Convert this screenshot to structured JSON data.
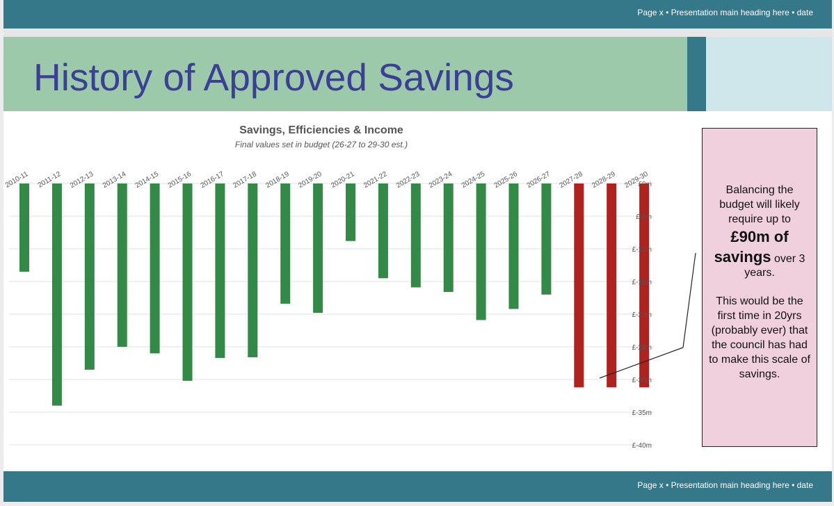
{
  "header": {
    "footer_text": "Page x • Presentation main heading here • date"
  },
  "slide": {
    "title": "History of Approved Savings"
  },
  "footer": {
    "footer_text": "Page x • Presentation main heading here • date"
  },
  "callout": {
    "line1": "Balancing the budget will likely require up to",
    "line2_bold": "£90m of savings",
    "line2_tail": " over 3 years.",
    "line3": "This would be the first time in 20yrs (probably ever) that the council has had to make this scale of savings."
  },
  "colors": {
    "historic": "#338a47",
    "projected": "#b0221d",
    "band": "#34788a",
    "title_band": "#9cc9aa",
    "title_text": "#3b3f95",
    "callout_bg": "#f0d0dc"
  },
  "chart_data": {
    "type": "bar",
    "title": "Savings, Efficiencies & Income",
    "subtitle": "Final values set in budget (26-27 to 29-30 est.)",
    "xlabel": "",
    "ylabel": "",
    "categories": [
      "2010-11",
      "2011-12",
      "2012-13",
      "2013-14",
      "2014-15",
      "2015-16",
      "2016-17",
      "2017-18",
      "2018-19",
      "2019-20",
      "2020-21",
      "2021-22",
      "2022-23",
      "2023-24",
      "2024-25",
      "2025-26",
      "2026-27",
      "2027-28",
      "2028-29",
      "2029-30"
    ],
    "values": [
      -13.5,
      -34,
      -28.5,
      -25,
      -26,
      -30.2,
      -26.7,
      -26.6,
      -18.4,
      -19.8,
      -8.8,
      -14.5,
      -15.9,
      -16.6,
      -20.9,
      -19.2,
      -17,
      -31.2,
      -31.2,
      -31.2
    ],
    "projected_from": "2027-28",
    "yticks": [
      "£0m",
      "£-5m",
      "£-10m",
      "£-15m",
      "£-20m",
      "£-25m",
      "£-30m",
      "£-35m",
      "£-40m"
    ],
    "ytick_values": [
      0,
      -5,
      -10,
      -15,
      -20,
      -25,
      -30,
      -35,
      -40
    ],
    "ylim": [
      -40,
      0
    ],
    "grid": true,
    "legend": "none"
  }
}
